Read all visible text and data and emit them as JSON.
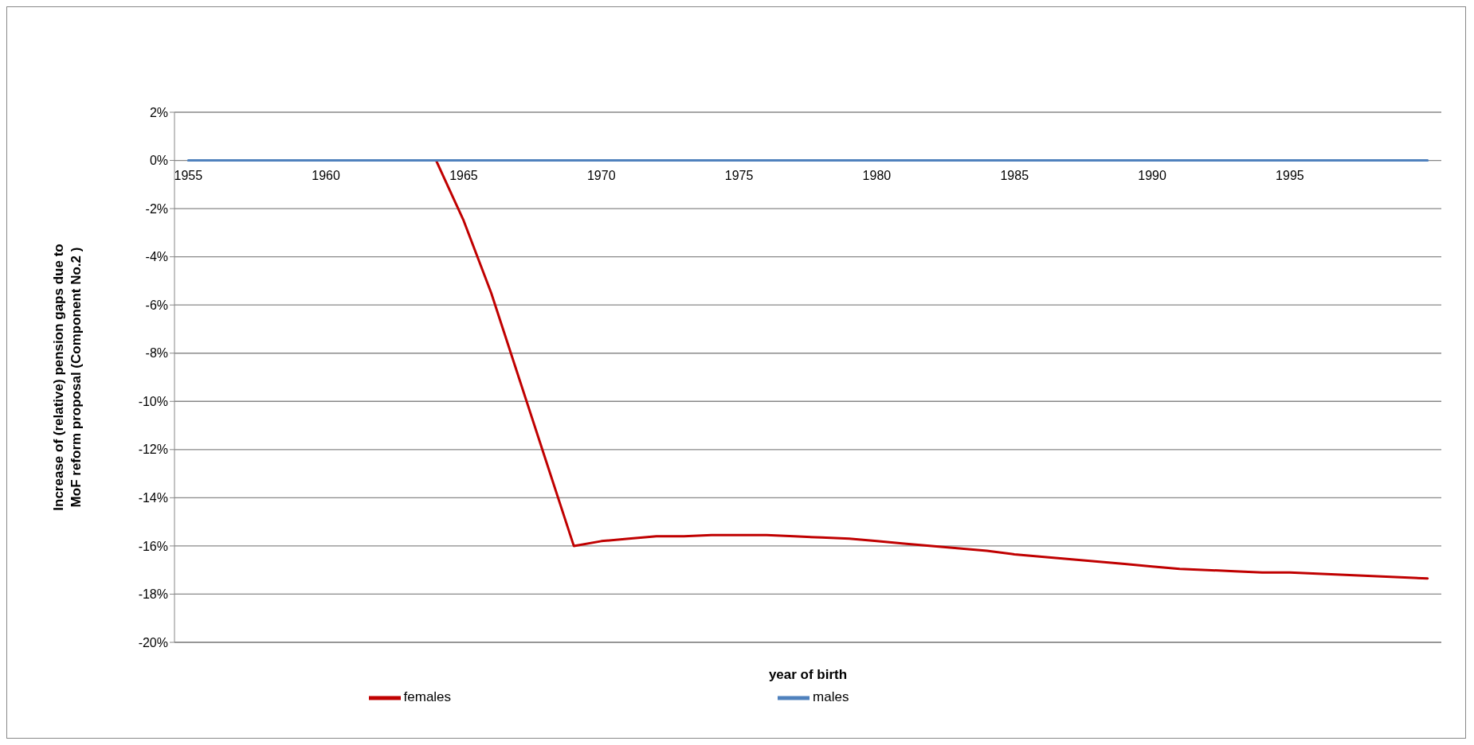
{
  "chart_data": {
    "type": "line",
    "xlabel": "year of birth",
    "ylabel": "Increase of (relative) pension gaps due to MoF reform proposal (Component No.2 )",
    "x": [
      1955,
      1956,
      1957,
      1958,
      1959,
      1960,
      1961,
      1962,
      1963,
      1964,
      1965,
      1966,
      1967,
      1968,
      1969,
      1970,
      1971,
      1972,
      1973,
      1974,
      1975,
      1976,
      1977,
      1978,
      1979,
      1980,
      1981,
      1982,
      1983,
      1984,
      1985,
      1986,
      1987,
      1988,
      1989,
      1990,
      1991,
      1992,
      1993,
      1994,
      1995,
      1996,
      1997,
      1998,
      1999,
      2000
    ],
    "series": [
      {
        "name": "females",
        "color": "#c00000",
        "values": [
          null,
          null,
          null,
          null,
          null,
          null,
          null,
          null,
          null,
          0,
          -2.5,
          -5.5,
          -9,
          -12.5,
          -16,
          -15.8,
          -15.7,
          -15.6,
          -15.6,
          -15.55,
          -15.55,
          -15.55,
          -15.6,
          -15.65,
          -15.7,
          -15.8,
          -15.9,
          -16.0,
          -16.1,
          -16.2,
          -16.35,
          -16.45,
          -16.55,
          -16.65,
          -16.75,
          -16.85,
          -16.95,
          -17.0,
          -17.05,
          -17.1,
          -17.1,
          -17.15,
          -17.2,
          -17.25,
          -17.3,
          -17.35
        ]
      },
      {
        "name": "males",
        "color": "#4f81bd",
        "values": [
          0,
          0,
          0,
          0,
          0,
          0,
          0,
          0,
          0,
          0,
          0,
          0,
          0,
          0,
          0,
          0,
          0,
          0,
          0,
          0,
          0,
          0,
          0,
          0,
          0,
          0,
          0,
          0,
          0,
          0,
          0,
          0,
          0,
          0,
          0,
          0,
          0,
          0,
          0,
          0,
          0,
          0,
          0,
          0,
          0,
          0
        ]
      }
    ],
    "xlim": [
      1954.5,
      2000.5
    ],
    "xticks": [
      1955,
      1960,
      1965,
      1970,
      1975,
      1980,
      1985,
      1990,
      1995
    ],
    "ylim": [
      -20,
      2
    ],
    "yticks": [
      {
        "value": -20,
        "label": "-20%"
      },
      {
        "value": -18,
        "label": "-18%"
      },
      {
        "value": -16,
        "label": "-16%"
      },
      {
        "value": -14,
        "label": "-14%"
      },
      {
        "value": -12,
        "label": "-12%"
      },
      {
        "value": -10,
        "label": "-10%"
      },
      {
        "value": -8,
        "label": "-8%"
      },
      {
        "value": -6,
        "label": "-6%"
      },
      {
        "value": -4,
        "label": "-4%"
      },
      {
        "value": -2,
        "label": "-2%"
      },
      {
        "value": 0,
        "label": "0%"
      },
      {
        "value": 2,
        "label": "2%"
      }
    ],
    "grid": "y",
    "legend": "bottom",
    "marker": "none",
    "line_style": "solid"
  }
}
